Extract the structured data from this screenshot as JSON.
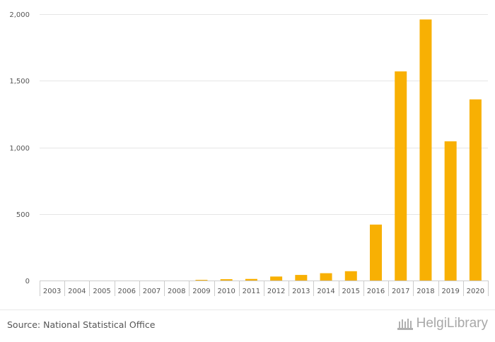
{
  "chart_data": {
    "type": "bar",
    "title": "",
    "xlabel": "",
    "ylabel": "",
    "categories": [
      "2003",
      "2004",
      "2005",
      "2006",
      "2007",
      "2008",
      "2009",
      "2010",
      "2011",
      "2012",
      "2013",
      "2014",
      "2015",
      "2016",
      "2017",
      "2018",
      "2019",
      "2020"
    ],
    "values": [
      0,
      0,
      0,
      0,
      0,
      0,
      5,
      10,
      12,
      30,
      42,
      55,
      70,
      420,
      1570,
      1960,
      1045,
      1360
    ],
    "ylim": [
      0,
      2000
    ],
    "yticks": [
      0,
      500,
      1000,
      1500,
      2000
    ],
    "ytick_labels": [
      "0",
      "500",
      "1,000",
      "1,500",
      "2,000"
    ],
    "grid": true,
    "legend": "none",
    "bar_color": "#f8b003"
  },
  "footer": {
    "source": "Source: National Statistical Office",
    "logo_text": "HelgiLibrary"
  }
}
